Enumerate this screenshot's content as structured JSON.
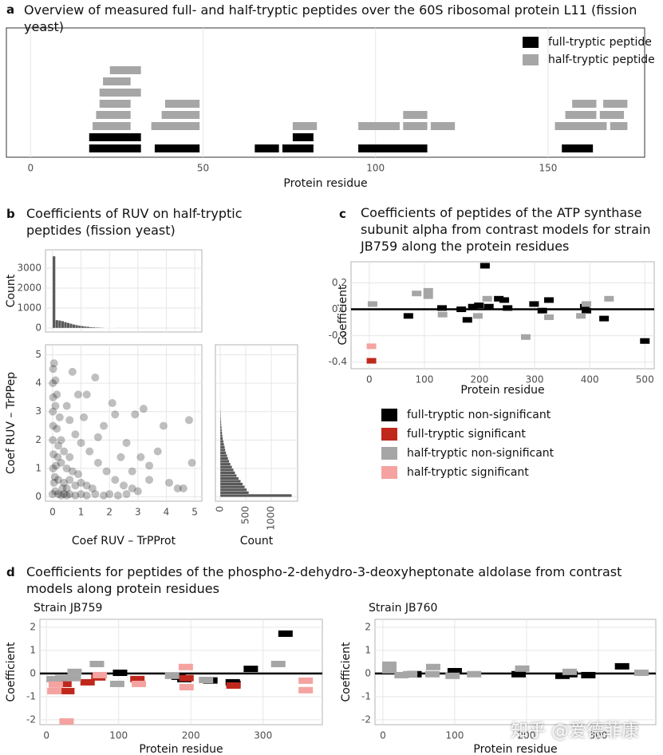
{
  "watermark": "知乎 @爱德菲康",
  "chart_data": [
    {
      "type": "range",
      "panel": "a",
      "title": "Overview of measured full- and half-tryptic peptides over the 60S ribosomal protein L11 (fission yeast)",
      "xlabel": "Protein residue",
      "xlim": [
        -7,
        178
      ],
      "xticks": [
        0,
        50,
        100,
        150
      ],
      "grid": true,
      "legend": "top right",
      "series": [
        {
          "name": "full-tryptic peptide",
          "color": "#000000",
          "start": [
            17,
            36,
            65,
            73,
            95,
            154,
            17,
            76
          ],
          "end": [
            32,
            49,
            72,
            82,
            115,
            163,
            32,
            82
          ]
        },
        {
          "name": "half-tryptic peptide",
          "color": "#a6a6a6",
          "start": [
            18,
            19,
            20,
            20,
            21,
            23,
            35,
            38,
            39,
            76,
            95,
            108,
            108,
            116,
            152,
            155,
            157,
            165,
            166,
            168
          ],
          "end": [
            29,
            29,
            29,
            32,
            29,
            32,
            49,
            49,
            49,
            83,
            107,
            115,
            115,
            123,
            167,
            164,
            164,
            172,
            173,
            173
          ]
        }
      ]
    },
    {
      "type": "histogram",
      "orientation": "vertical",
      "panel": "b",
      "title": "Coefficients of RUV on half-tryptic peptides (fission yeast)",
      "ylabel": "Count",
      "ylim": [
        -200,
        3920
      ],
      "yticks": [
        0,
        1000,
        2000,
        3000
      ],
      "grid": true,
      "color": "#595959",
      "bins": [
        0,
        0.1,
        0.2,
        0.3,
        0.4,
        0.5,
        0.6,
        0.7,
        0.8,
        0.9,
        1,
        1.1,
        1.2,
        1.3,
        1.4,
        1.5,
        1.6,
        1.7,
        1.8,
        1.9,
        2,
        2.1,
        2.2,
        2.3,
        2.4,
        2.5,
        2.6,
        2.7,
        2.8,
        2.9,
        3
      ],
      "counts": [
        3600,
        400,
        380,
        350,
        300,
        260,
        220,
        180,
        150,
        120,
        100,
        80,
        65,
        50,
        40,
        32,
        25,
        20,
        15,
        12,
        10,
        8,
        6,
        5,
        4,
        3,
        3,
        2,
        2,
        1
      ]
    },
    {
      "type": "scatter",
      "xlabel": "Coef RUV – TrPProt",
      "ylabel": "Coef RUV – TrPPep",
      "xlim": [
        -0.25,
        5.25
      ],
      "ylim": [
        -0.15,
        5.35
      ],
      "xticks": [
        0,
        1,
        2,
        3,
        4,
        5
      ],
      "yticks": [
        0,
        1,
        2,
        3,
        4,
        5
      ],
      "grid": true,
      "color": "#000000",
      "x": [
        0,
        0.05,
        0.02,
        0.03,
        0.01,
        0.02,
        0.01,
        0.02,
        0.01,
        0.02,
        0.05,
        0.1,
        0.2,
        0.3,
        0.4,
        0.5,
        0.6,
        0.8,
        1,
        1.2,
        1.5,
        1.8,
        2,
        2.3,
        2.6,
        0.2,
        0.3,
        0.2,
        0.15,
        0.1,
        0.4,
        0.6,
        0.5,
        0.8,
        0.7,
        1,
        0.4,
        0.3,
        0.6,
        1.2,
        1.4,
        0.9,
        0.25,
        0.15,
        0.1,
        0.35,
        0.5,
        0.12,
        0.08,
        0.18,
        0.5,
        0.6,
        0.8,
        1,
        1.3,
        1.6,
        1.9,
        2.2,
        2.5,
        2.8,
        3,
        1.5,
        1.2,
        2.2,
        1.8,
        2.6,
        3.1,
        3.4,
        4.1,
        4.6,
        4.9,
        4.8,
        3.7,
        2.9,
        3.2,
        2.1,
        1.1,
        0.9,
        1.6,
        2.4,
        3.4,
        2.8,
        4.4,
        3.9,
        0.7
      ],
      "y": [
        0.1,
        0.5,
        1,
        1.5,
        2,
        2.5,
        3,
        3.5,
        4,
        4.5,
        4.7,
        0.2,
        0.1,
        0.05,
        0.1,
        0.05,
        0.1,
        0.05,
        0.1,
        0.05,
        0.1,
        0.05,
        0.1,
        0.05,
        0.1,
        0.6,
        1.2,
        1.8,
        2.4,
        3.2,
        0.5,
        0.6,
        1,
        0.4,
        0.9,
        0.5,
        1.6,
        2,
        1.4,
        0.4,
        0.3,
        0.8,
        2.8,
        3.6,
        4.1,
        0.3,
        0.3,
        1.1,
        0.7,
        1.4,
        3.2,
        2.7,
        2.2,
        1.9,
        1.6,
        1.2,
        0.9,
        0.6,
        0.4,
        0.3,
        0.2,
        4.2,
        3.6,
        2.9,
        2.5,
        1.9,
        1.4,
        1.1,
        0.5,
        0.3,
        1.2,
        2.7,
        1.6,
        2.9,
        3.1,
        3.3,
        2.8,
        3.6,
        2.1,
        1.4,
        0.6,
        0.9,
        0.3,
        2.5,
        4.4
      ]
    },
    {
      "type": "histogram",
      "orientation": "horizontal",
      "xlabel": "Count",
      "xlim": [
        -94,
        1515
      ],
      "xticks": [
        0,
        500,
        1000
      ],
      "grid": true,
      "color": "#595959",
      "bins": [
        0,
        0.1,
        0.2,
        0.3,
        0.4,
        0.5,
        0.6,
        0.7,
        0.8,
        0.9,
        1,
        1.1,
        1.2,
        1.3,
        1.4,
        1.5,
        1.6,
        1.7,
        1.8,
        1.9,
        2,
        2.1,
        2.2,
        2.3,
        2.4,
        2.5,
        2.6,
        2.7,
        2.8,
        2.9,
        3,
        3.1,
        3.2,
        3.3,
        3.4,
        3.5,
        3.6,
        3.7,
        3.8,
        3.9,
        4
      ],
      "counts": [
        1400,
        560,
        520,
        480,
        440,
        400,
        360,
        320,
        290,
        260,
        230,
        200,
        175,
        155,
        135,
        115,
        100,
        88,
        75,
        63,
        53,
        45,
        38,
        32,
        27,
        22,
        18,
        15,
        12,
        10,
        8,
        6,
        5,
        4,
        3,
        3,
        2,
        2,
        1,
        1
      ]
    },
    {
      "type": "dash",
      "panel": "c",
      "title": "Coefficients of peptides of the ATP synthase subunit alpha from contrast models for strain JB759 along the protein residues",
      "xlabel": "Protein residue",
      "ylabel": "Coefficient",
      "xlim": [
        -33,
        517
      ],
      "ylim": [
        -0.45,
        0.36
      ],
      "xticks": [
        0,
        100,
        200,
        300,
        400,
        500
      ],
      "yticks": [
        0.2,
        {
          "value": 0,
          "label": "0.0"
        },
        -0.2,
        -0.4
      ],
      "grid": true,
      "hline": 0,
      "legend": "bottom",
      "series": [
        {
          "name": "full-tryptic non-significant",
          "color": "#000000",
          "x": [
            71,
            132,
            167,
            178,
            188,
            199,
            210,
            217,
            235,
            245,
            251,
            299,
            314,
            326,
            391,
            394,
            426,
            500
          ],
          "y": [
            -0.05,
            0.01,
            0,
            -0.08,
            0.02,
            0.03,
            0.33,
            0.02,
            0.08,
            0.07,
            0.01,
            0.04,
            -0.01,
            0.07,
            0.02,
            -0.01,
            -0.07,
            -0.24
          ]
        },
        {
          "name": "full-tryptic significant",
          "color": "#c0281c",
          "x": [
            4
          ],
          "y": [
            -0.39
          ]
        },
        {
          "name": "half-tryptic non-significant",
          "color": "#a6a6a6",
          "x": [
            6,
            86,
            107,
            107,
            133,
            197,
            214,
            284,
            326,
            384,
            394,
            435
          ],
          "y": [
            0.04,
            0.12,
            0.14,
            0.1,
            -0.04,
            -0.05,
            0.08,
            -0.21,
            -0.06,
            -0.05,
            0.04,
            0.08
          ]
        },
        {
          "name": "half-tryptic significant",
          "color": "#f4a3a0",
          "x": [
            4
          ],
          "y": [
            -0.28
          ]
        }
      ]
    },
    {
      "type": "dash",
      "panel": "d",
      "title": "Coefficients for peptides of the phospho-2-dehydro-3-deoxyheptonate aldolase from contrast models along protein residues",
      "subtitle": "Strain JB759",
      "xlabel": "Protein residue",
      "ylabel": "Coefficient",
      "xlim": [
        -9,
        382
      ],
      "ylim": [
        -2.21,
        2.34
      ],
      "xticks": [
        0,
        100,
        200,
        300
      ],
      "yticks": [
        -2,
        -1,
        0,
        1,
        2
      ],
      "grid": true,
      "hline": 0,
      "series": [
        {
          "color": "#000000",
          "x": [
            102,
            183,
            191,
            227,
            258,
            259,
            283,
            331
          ],
          "y": [
            0.03,
            -0.14,
            -0.24,
            -0.3,
            -0.38,
            -0.45,
            0.2,
            1.72
          ]
        },
        {
          "color": "#c0281c",
          "x": [
            25,
            29,
            57,
            72,
            126,
            194,
            259
          ],
          "y": [
            -0.45,
            -0.76,
            -0.38,
            -0.17,
            -0.24,
            -0.2,
            -0.52
          ]
        },
        {
          "color": "#a6a6a6",
          "x": [
            10,
            22,
            39,
            38,
            70,
            98,
            174,
            221,
            321
          ],
          "y": [
            -0.24,
            -0.2,
            0.07,
            -0.2,
            0.41,
            -0.45,
            -0.1,
            -0.28,
            0.41
          ]
        },
        {
          "color": "#f4a3a0",
          "x": [
            11,
            13,
            28,
            74,
            128,
            193,
            194,
            359,
            359
          ],
          "y": [
            -0.76,
            -0.48,
            -2.07,
            -0.07,
            -0.45,
            0.28,
            -0.59,
            -0.31,
            -0.72
          ]
        }
      ]
    },
    {
      "type": "dash",
      "subtitle": "Strain JB760",
      "xlabel": "Protein residue",
      "ylabel": "Coefficient",
      "xlim": [
        -11,
        380
      ],
      "ylim": [
        -2.21,
        2.34
      ],
      "xticks": [
        0,
        100,
        200,
        300
      ],
      "yticks": [
        -2,
        -1,
        0,
        1,
        2
      ],
      "grid": true,
      "hline": 0,
      "series": [
        {
          "color": "#000000",
          "x": [
            44,
            100,
            189,
            250,
            261,
            286,
            333
          ],
          "y": [
            -0.03,
            0.1,
            -0.03,
            -0.1,
            -0.03,
            -0.07,
            0.31
          ]
        },
        {
          "color": "#a6a6a6",
          "x": [
            9,
            9,
            26,
            38,
            70,
            69,
            97,
            127,
            194,
            260,
            360
          ],
          "y": [
            0.38,
            0.14,
            -0.07,
            -0.03,
            0.28,
            -0.03,
            -0.1,
            -0.03,
            0.21,
            0.07,
            0.03
          ]
        }
      ]
    }
  ]
}
